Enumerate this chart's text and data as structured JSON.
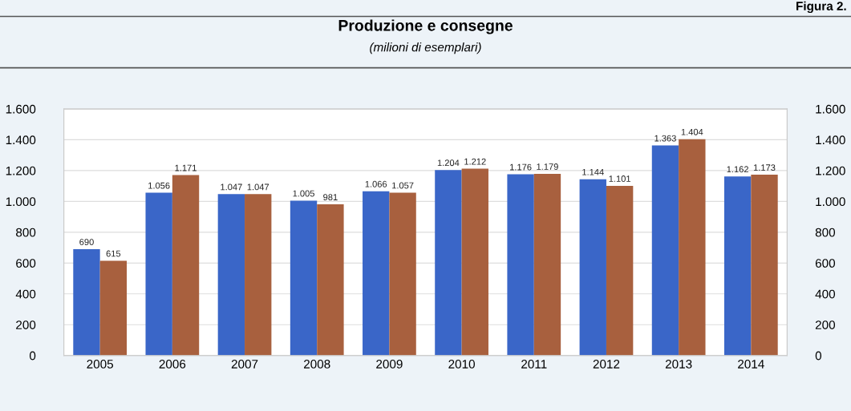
{
  "chart_data": {
    "type": "bar",
    "title": "Produzione e consegne",
    "subtitle": "(milioni di esemplari)",
    "annotations": [
      "Figura 2."
    ],
    "categories": [
      "2005",
      "2006",
      "2007",
      "2008",
      "2009",
      "2010",
      "2011",
      "2012",
      "2013",
      "2014"
    ],
    "series": [
      {
        "color": "#3a66c8",
        "values": [
          690,
          1056,
          1047,
          1005,
          1066,
          1204,
          1176,
          1144,
          1363,
          1162
        ],
        "value_labels": [
          "690",
          "1.056",
          "1.047",
          "1.005",
          "1.066",
          "1.204",
          "1.176",
          "1.144",
          "1.363",
          "1.162"
        ]
      },
      {
        "color": "#a8603e",
        "values": [
          615,
          1171,
          1047,
          981,
          1057,
          1212,
          1179,
          1101,
          1404,
          1173
        ],
        "value_labels": [
          "615",
          "1.171",
          "1.047",
          "981",
          "1.057",
          "1.212",
          "1.179",
          "1.101",
          "1.404",
          "1.173"
        ]
      }
    ],
    "ylim": [
      0,
      1600
    ],
    "yticks": [
      0,
      200,
      400,
      600,
      800,
      {
        "value": 1000,
        "label": "1.000"
      },
      {
        "value": 1200,
        "label": "1.200"
      },
      {
        "value": 1400,
        "label": "1.400"
      },
      {
        "value": 1600,
        "label": "1.600"
      }
    ],
    "y2lim": [
      0,
      1600
    ],
    "y2ticks": [
      0,
      200,
      400,
      600,
      800,
      {
        "value": 1000,
        "label": "1.000"
      },
      {
        "value": 1200,
        "label": "1.200"
      },
      {
        "value": 1400,
        "label": "1.400"
      },
      {
        "value": 1600,
        "label": "1.600"
      }
    ],
    "grid": "y"
  }
}
